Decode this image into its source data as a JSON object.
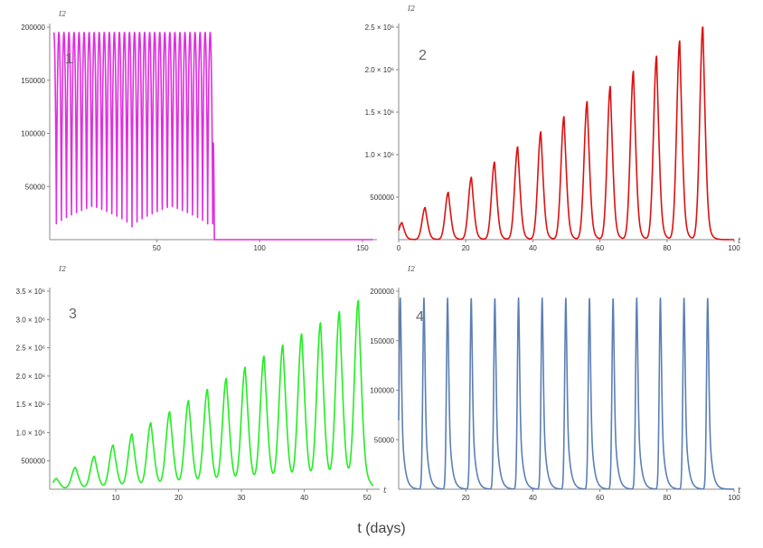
{
  "figure": {
    "footer_label": "t (days)"
  },
  "chart_data": [
    {
      "type": "line",
      "panel_label": "1",
      "ylabel": "I2",
      "xlabel": "",
      "color": "#e02ee0",
      "xlim": [
        -2,
        157
      ],
      "ylim": [
        0,
        200000
      ],
      "xticks": [
        {
          "v": 50,
          "label": "50"
        },
        {
          "v": 100,
          "label": "100"
        },
        {
          "v": 150,
          "label": "150"
        }
      ],
      "yticks": [
        {
          "v": 50000,
          "label": "50000"
        },
        {
          "v": 100000,
          "label": "100000"
        },
        {
          "v": 150000,
          "label": "150000"
        },
        {
          "v": 200000,
          "label": "200000"
        }
      ],
      "series": [
        {
          "kind": "sustained",
          "period": 2.45,
          "t_start": 0,
          "t_stop": 78,
          "t_end": 155,
          "min": 12000,
          "max": 195000
        }
      ]
    },
    {
      "type": "line",
      "panel_label": "2",
      "ylabel": "I2",
      "xlabel": "t",
      "color": "#dd1111",
      "xlim": [
        0,
        100
      ],
      "ylim": [
        0,
        2500000
      ],
      "xticks": [
        {
          "v": 0,
          "label": "0"
        },
        {
          "v": 20,
          "label": "20"
        },
        {
          "v": 40,
          "label": "40"
        },
        {
          "v": 60,
          "label": "60"
        },
        {
          "v": 80,
          "label": "80"
        },
        {
          "v": 100,
          "label": "100"
        }
      ],
      "yticks": [
        {
          "v": 500000,
          "label": "500000"
        },
        {
          "v": 1000000,
          "label": "1.0 × 10⁶"
        },
        {
          "v": 1500000,
          "label": "1.5 × 10⁶"
        },
        {
          "v": 2000000,
          "label": "2.0 × 10⁶"
        },
        {
          "v": 2500000,
          "label": "2.5 × 10⁶"
        }
      ],
      "series": [
        {
          "kind": "growing_pulses",
          "first_peak": 1,
          "period": 6.9,
          "count": 14,
          "peak_start": 200000,
          "peak_step": 178000,
          "rise": 0.9,
          "decay": 0.85,
          "t_end": 100
        }
      ]
    },
    {
      "type": "line",
      "panel_label": "3",
      "ylabel": "I2",
      "xlabel": "t",
      "color": "#22ee22",
      "xlim": [
        -0.5,
        52
      ],
      "ylim": [
        0,
        3500000
      ],
      "xticks": [
        {
          "v": 10,
          "label": "10"
        },
        {
          "v": 20,
          "label": "20"
        },
        {
          "v": 30,
          "label": "30"
        },
        {
          "v": 40,
          "label": "40"
        },
        {
          "v": 50,
          "label": "50"
        }
      ],
      "yticks": [
        {
          "v": 500000,
          "label": "500000"
        },
        {
          "v": 1000000,
          "label": "1.0 × 10⁶"
        },
        {
          "v": 1500000,
          "label": "1.5 × 10⁶"
        },
        {
          "v": 2000000,
          "label": "2.0 × 10⁶"
        },
        {
          "v": 2500000,
          "label": "2.5 × 10⁶"
        },
        {
          "v": 3000000,
          "label": "3.0 × 10⁶"
        },
        {
          "v": 3500000,
          "label": "3.5 × 10⁶"
        }
      ],
      "series": [
        {
          "kind": "growing_pulses",
          "first_peak": 0.6,
          "period": 3.0,
          "count": 17,
          "peak_start": 190000,
          "peak_step": 195000,
          "rise": 0.6,
          "decay": 0.7,
          "t_end": 51
        }
      ]
    },
    {
      "type": "line",
      "panel_label": "4",
      "ylabel": "I2",
      "xlabel": "t",
      "color": "#5b7fb5",
      "xlim": [
        0,
        100
      ],
      "ylim": [
        0,
        200000
      ],
      "xticks": [
        {
          "v": 20,
          "label": "20"
        },
        {
          "v": 40,
          "label": "40"
        },
        {
          "v": 60,
          "label": "60"
        },
        {
          "v": 80,
          "label": "80"
        },
        {
          "v": 100,
          "label": "100"
        }
      ],
      "yticks": [
        {
          "v": 50000,
          "label": "50000"
        },
        {
          "v": 100000,
          "label": "100000"
        },
        {
          "v": 150000,
          "label": "150000"
        },
        {
          "v": 200000,
          "label": "200000"
        }
      ],
      "series": [
        {
          "kind": "constant_pulses",
          "first_peak": 0.5,
          "period": 7.05,
          "count": 14,
          "peak": 193000,
          "rise": 0.35,
          "decay": 0.9,
          "t_end": 100
        }
      ]
    }
  ]
}
